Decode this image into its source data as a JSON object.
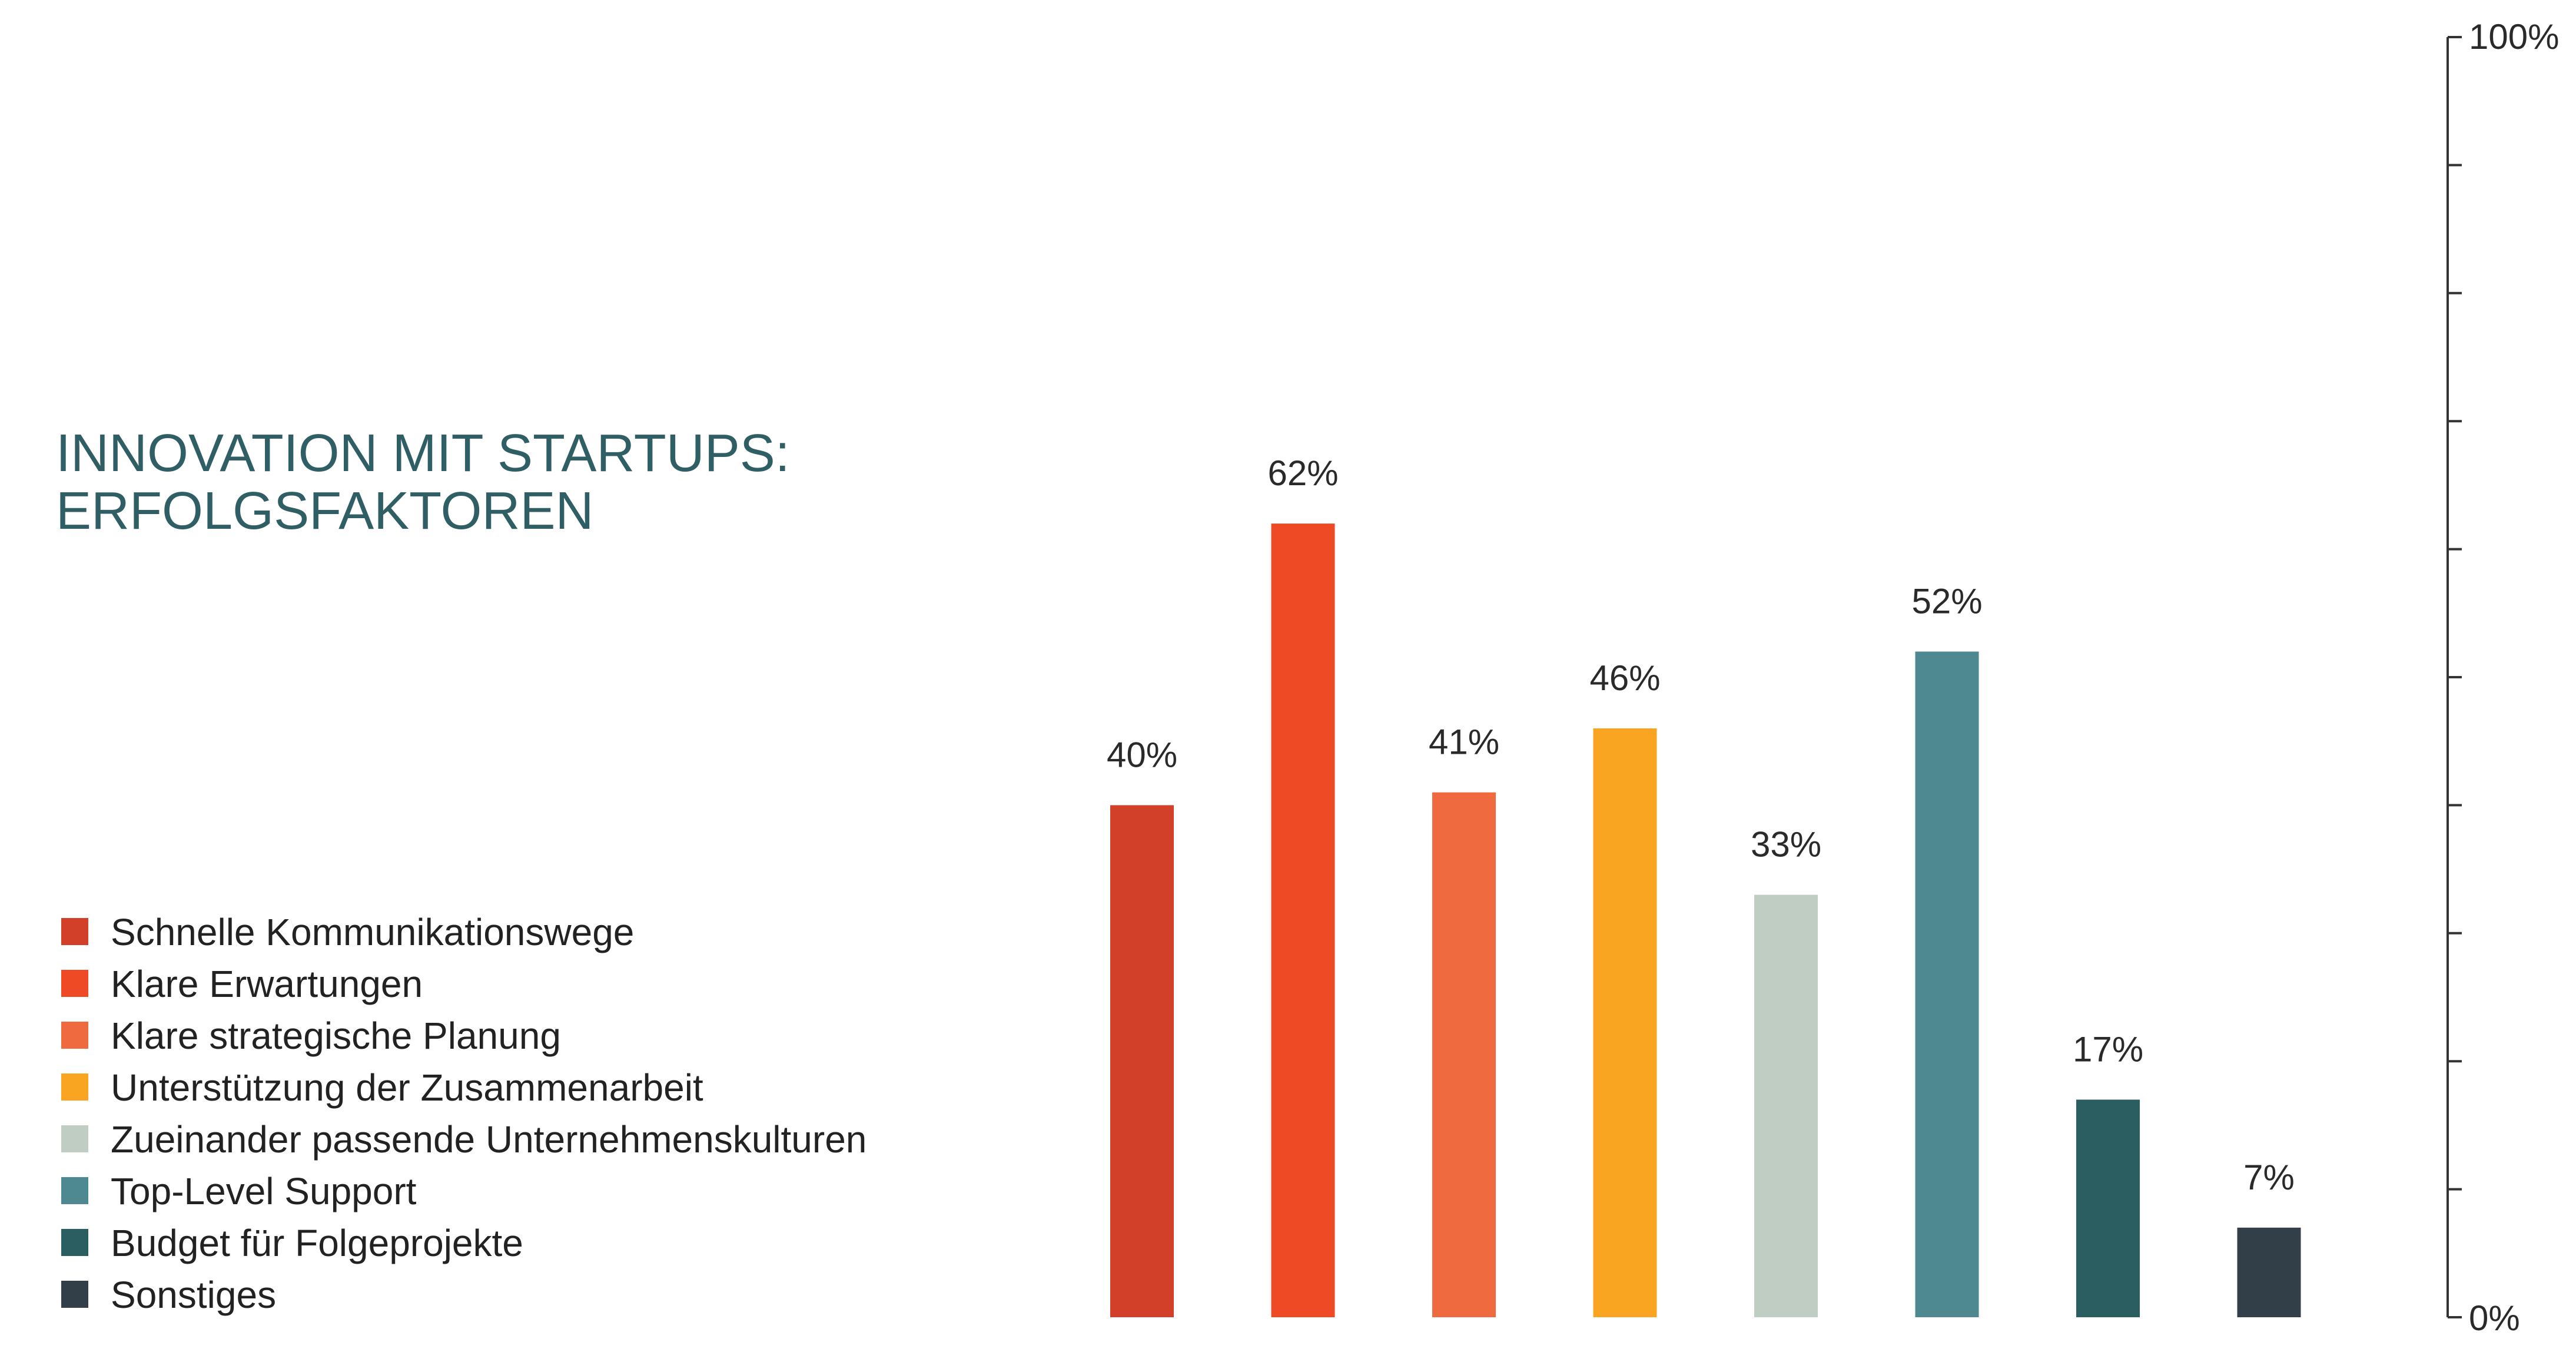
{
  "title_lines": [
    "INNOVATION MIT STARTUPS:",
    "ERFOLGSFAKTOREN"
  ],
  "colors": {
    "title": "#2f5f65",
    "axis": "#333333"
  },
  "chart_data": {
    "type": "bar",
    "categories": [
      "Schnelle Kommunikationswege",
      "Klare Erwartungen",
      "Klare strategische Planung",
      "Unterstützung der Zusammenarbeit",
      "Zueinander passende Unternehmenskulturen",
      "Top-Level Support",
      "Budget für Folgeprojekte",
      "Sonstiges"
    ],
    "values": [
      40,
      62,
      41,
      46,
      33,
      52,
      17,
      7
    ],
    "value_labels": [
      "40%",
      "62%",
      "41%",
      "46%",
      "33%",
      "52%",
      "17%",
      "7%"
    ],
    "bar_colors": [
      "#d2402a",
      "#ef4a26",
      "#f06a40",
      "#f9a521",
      "#bfcdc2",
      "#4e8890",
      "#2b5e60",
      "#323e48"
    ],
    "ylim": [
      0,
      100
    ],
    "y_tick_count": 11,
    "y_axis_labels": {
      "min": "0%",
      "max": "100%"
    },
    "y_axis_side": "right",
    "legend_position": "left",
    "grid": false
  }
}
